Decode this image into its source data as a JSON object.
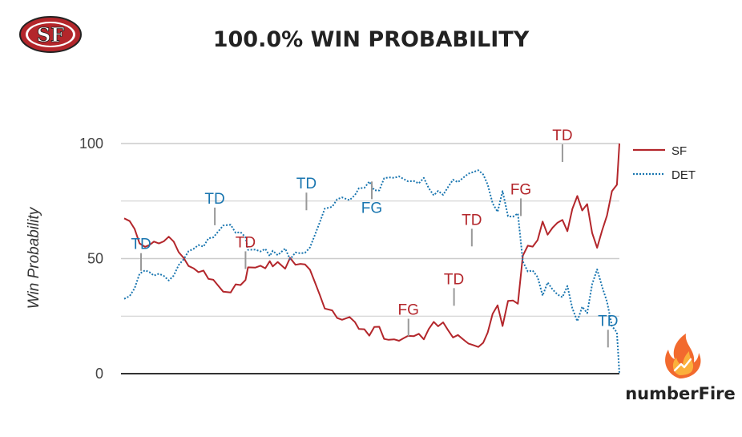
{
  "header": {
    "title": "100.0% WIN PROBABILITY",
    "team_logo": "sf-49ers-logo"
  },
  "brand": {
    "name": "numberFire",
    "icon": "flame-icon"
  },
  "colors": {
    "SF": "#b3262b",
    "DET": "#1a76b0",
    "grid": "#cccccc",
    "axis": "#333333",
    "annotation_line": "#999999"
  },
  "chart_data": {
    "type": "line",
    "title": "100.0% WIN PROBABILITY",
    "xlabel": "",
    "ylabel": "Win Probability",
    "ylim": [
      0,
      100
    ],
    "xlim": [
      0,
      100
    ],
    "yticks": [
      "0",
      "50",
      "100"
    ],
    "grid": true,
    "legend_position": "right",
    "series": [
      {
        "name": "SF",
        "style": "solid",
        "points": [
          [
            0,
            67.5
          ],
          [
            1.1,
            66.3
          ],
          [
            2.1,
            62.9
          ],
          [
            3.1,
            56.6
          ],
          [
            4.2,
            55.1
          ],
          [
            5.1,
            55.9
          ],
          [
            6,
            57.4
          ],
          [
            7,
            56.6
          ],
          [
            8,
            57.5
          ],
          [
            9,
            59.5
          ],
          [
            10,
            57.4
          ],
          [
            11,
            52.8
          ],
          [
            12,
            50.3
          ],
          [
            13,
            46.8
          ],
          [
            14,
            45.8
          ],
          [
            15,
            44.1
          ],
          [
            16,
            44.8
          ],
          [
            17,
            41.2
          ],
          [
            18,
            40.8
          ],
          [
            19,
            38.2
          ],
          [
            20,
            35.6
          ],
          [
            21.5,
            35.3
          ],
          [
            22.5,
            38.8
          ],
          [
            23.5,
            38.5
          ],
          [
            24.5,
            40.7
          ],
          [
            25,
            46.2
          ],
          [
            26.5,
            46.1
          ],
          [
            27.5,
            46.9
          ],
          [
            28.5,
            45.8
          ],
          [
            29.4,
            48.9
          ],
          [
            30,
            46.6
          ],
          [
            31,
            48.5
          ],
          [
            32.5,
            45.6
          ],
          [
            33.5,
            50.3
          ],
          [
            34.6,
            47.3
          ],
          [
            35.6,
            47.7
          ],
          [
            36.5,
            47.5
          ],
          [
            37.5,
            45.2
          ],
          [
            38.5,
            39.8
          ],
          [
            39.5,
            34.2
          ],
          [
            40.5,
            28.3
          ],
          [
            42,
            27.5
          ],
          [
            43,
            24.2
          ],
          [
            44,
            23.4
          ],
          [
            45.5,
            24.6
          ],
          [
            46.6,
            22.4
          ],
          [
            47.4,
            19.4
          ],
          [
            48.5,
            19.3
          ],
          [
            49.5,
            16.5
          ],
          [
            50.5,
            20.3
          ],
          [
            51.5,
            20.4
          ],
          [
            52.5,
            15.1
          ],
          [
            53.4,
            14.7
          ],
          [
            54.5,
            14.9
          ],
          [
            55.5,
            14.3
          ],
          [
            56.5,
            15.5
          ],
          [
            57.3,
            16.4
          ],
          [
            58.5,
            16.3
          ],
          [
            59.5,
            17.3
          ],
          [
            60.5,
            14.9
          ],
          [
            61.5,
            19.4
          ],
          [
            62.5,
            22.5
          ],
          [
            63.4,
            20.6
          ],
          [
            64.4,
            22.3
          ],
          [
            65.4,
            18.9
          ],
          [
            66.4,
            15.7
          ],
          [
            67.4,
            16.8
          ],
          [
            68.5,
            14.8
          ],
          [
            69.5,
            13.1
          ],
          [
            70.5,
            12.4
          ],
          [
            71.5,
            11.6
          ],
          [
            72.5,
            13.4
          ],
          [
            73.4,
            17.8
          ],
          [
            74.4,
            26
          ],
          [
            75.4,
            29.7
          ],
          [
            76.4,
            20.7
          ],
          [
            77.5,
            31.6
          ],
          [
            78.5,
            31.8
          ],
          [
            79.5,
            30.4
          ],
          [
            80.5,
            51.3
          ],
          [
            81.5,
            55.6
          ],
          [
            82.5,
            55.2
          ],
          [
            83.5,
            58.1
          ],
          [
            84.5,
            66.1
          ],
          [
            85.5,
            60.4
          ],
          [
            86.5,
            63.4
          ],
          [
            87.5,
            65.6
          ],
          [
            88.5,
            66.8
          ],
          [
            89.5,
            61.9
          ],
          [
            90.5,
            71.6
          ],
          [
            91.5,
            77.2
          ],
          [
            92.5,
            70.9
          ],
          [
            93.5,
            73.7
          ],
          [
            94.5,
            61.1
          ],
          [
            95.5,
            54.7
          ],
          [
            96.5,
            62.2
          ],
          [
            97.5,
            68.7
          ],
          [
            98.5,
            79.3
          ],
          [
            99.5,
            82.1
          ],
          [
            100,
            100
          ]
        ]
      },
      {
        "name": "DET",
        "style": "dotted",
        "points": [
          [
            0,
            32.5
          ],
          [
            1.1,
            33.7
          ],
          [
            2.1,
            37.1
          ],
          [
            3.1,
            43.4
          ],
          [
            4.2,
            44.9
          ],
          [
            5.1,
            44.1
          ],
          [
            6,
            42.6
          ],
          [
            7,
            43.4
          ],
          [
            8,
            42.5
          ],
          [
            9,
            40.5
          ],
          [
            10,
            42.6
          ],
          [
            11,
            47.2
          ],
          [
            12,
            49.7
          ],
          [
            13,
            53.2
          ],
          [
            14,
            54.2
          ],
          [
            15,
            55.9
          ],
          [
            16,
            55.2
          ],
          [
            17,
            58.8
          ],
          [
            18,
            59.2
          ],
          [
            19,
            61.8
          ],
          [
            20,
            64.4
          ],
          [
            21.5,
            64.7
          ],
          [
            22.5,
            61.2
          ],
          [
            23.5,
            61.5
          ],
          [
            24.5,
            59.3
          ],
          [
            25,
            53.8
          ],
          [
            26.5,
            53.9
          ],
          [
            27.5,
            53.1
          ],
          [
            28.5,
            54.2
          ],
          [
            29.4,
            51.1
          ],
          [
            30,
            53.4
          ],
          [
            31,
            51.5
          ],
          [
            32.5,
            54.4
          ],
          [
            33.5,
            49.7
          ],
          [
            34.6,
            52.7
          ],
          [
            35.6,
            52.3
          ],
          [
            36.5,
            52.5
          ],
          [
            37.5,
            54.8
          ],
          [
            38.5,
            60.2
          ],
          [
            39.5,
            65.8
          ],
          [
            40.5,
            71.7
          ],
          [
            42,
            72.5
          ],
          [
            43,
            75.8
          ],
          [
            44,
            76.6
          ],
          [
            45.5,
            75.4
          ],
          [
            46.6,
            77.6
          ],
          [
            47.4,
            80.6
          ],
          [
            48.5,
            80.7
          ],
          [
            49.5,
            83.5
          ],
          [
            50.5,
            79.7
          ],
          [
            51.5,
            79.6
          ],
          [
            52.5,
            84.9
          ],
          [
            53.4,
            85.3
          ],
          [
            54.5,
            85.1
          ],
          [
            55.5,
            85.7
          ],
          [
            56.5,
            84.5
          ],
          [
            57.3,
            83.6
          ],
          [
            58.5,
            83.7
          ],
          [
            59.5,
            82.7
          ],
          [
            60.5,
            85.1
          ],
          [
            61.5,
            80.6
          ],
          [
            62.5,
            77.5
          ],
          [
            63.4,
            79.4
          ],
          [
            64.4,
            77.7
          ],
          [
            65.4,
            81.1
          ],
          [
            66.4,
            84.3
          ],
          [
            67.4,
            83.2
          ],
          [
            68.5,
            85.2
          ],
          [
            69.5,
            86.9
          ],
          [
            70.5,
            87.6
          ],
          [
            71.5,
            88.4
          ],
          [
            72.5,
            86.6
          ],
          [
            73.4,
            82.2
          ],
          [
            74.4,
            74
          ],
          [
            75.4,
            70.3
          ],
          [
            76.4,
            79.3
          ],
          [
            77.5,
            68.4
          ],
          [
            78.5,
            68.2
          ],
          [
            79.5,
            69.6
          ],
          [
            80.5,
            48.7
          ],
          [
            81.5,
            44.4
          ],
          [
            82.5,
            44.8
          ],
          [
            83.5,
            41.9
          ],
          [
            84.5,
            33.9
          ],
          [
            85.5,
            39.6
          ],
          [
            86.5,
            36.6
          ],
          [
            87.5,
            34.4
          ],
          [
            88.5,
            33.2
          ],
          [
            89.5,
            38.1
          ],
          [
            90.5,
            28.4
          ],
          [
            91.5,
            22.8
          ],
          [
            92.5,
            29.1
          ],
          [
            93.5,
            26.3
          ],
          [
            94.5,
            38.9
          ],
          [
            95.5,
            45.3
          ],
          [
            96.5,
            37.8
          ],
          [
            97.5,
            31.3
          ],
          [
            98.5,
            20.7
          ],
          [
            99.5,
            17.9
          ],
          [
            100,
            0
          ]
        ]
      }
    ],
    "annotations": [
      {
        "label": "TD",
        "team": "DET",
        "x": 3.4,
        "y": 44.7,
        "side": "above"
      },
      {
        "label": "TD",
        "team": "DET",
        "x": 18.3,
        "y": 64.5,
        "side": "above"
      },
      {
        "label": "TD",
        "team": "SF",
        "x": 24.5,
        "y": 45.5,
        "side": "above"
      },
      {
        "label": "TD",
        "team": "DET",
        "x": 36.8,
        "y": 71,
        "side": "above"
      },
      {
        "label": "FG",
        "team": "DET",
        "x": 50,
        "y": 83.5,
        "side": "below"
      },
      {
        "label": "FG",
        "team": "SF",
        "x": 57.4,
        "y": 16.2,
        "side": "above"
      },
      {
        "label": "TD",
        "team": "SF",
        "x": 66.6,
        "y": 29.5,
        "side": "above"
      },
      {
        "label": "TD",
        "team": "SF",
        "x": 70.2,
        "y": 55.3,
        "side": "above"
      },
      {
        "label": "FG",
        "team": "SF",
        "x": 80.1,
        "y": 68.5,
        "side": "above"
      },
      {
        "label": "TD",
        "team": "SF",
        "x": 88.5,
        "y": 92,
        "side": "above"
      },
      {
        "label": "TD",
        "team": "DET",
        "x": 97.7,
        "y": 11.4,
        "side": "above"
      }
    ]
  }
}
